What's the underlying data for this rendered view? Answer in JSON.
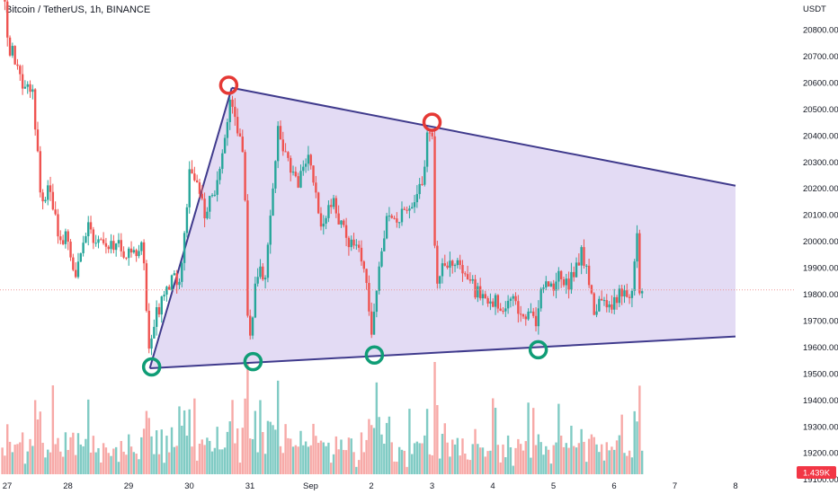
{
  "header": {
    "title": "Bitcoin / TetherUS, 1h, BINANCE"
  },
  "colors": {
    "up": "#26a69a",
    "down": "#ef5350",
    "vol_up": "#80cbc4",
    "vol_down": "#f7a9a7",
    "triangle_fill": "#ded5f2",
    "triangle_line": "#3f3a8c",
    "pivot_high": "#e53935",
    "pivot_low": "#0f9d76",
    "last_price_tag": "#f23645",
    "last_price_line": "#ef9a9a"
  },
  "chart_data": {
    "type": "candlestick",
    "symbol": "Bitcoin / TetherUS",
    "interval": "1h",
    "exchange": "BINANCE",
    "y_axis": {
      "unit": "USDT",
      "range": [
        19100,
        20950
      ],
      "ticks": [
        "20800.00",
        "20700.00",
        "20600.00",
        "20500.00",
        "20400.00",
        "20300.00",
        "20200.00",
        "20100.00",
        "20000.00",
        "19900.00",
        "19800.00",
        "19700.00",
        "19600.00",
        "19500.00",
        "19400.00",
        "19300.00",
        "19200.00",
        "19100.00"
      ]
    },
    "x_axis": {
      "range_days": [
        26.9,
        39.0
      ],
      "ticks": [
        {
          "label": "27",
          "day": 27
        },
        {
          "label": "28",
          "day": 28
        },
        {
          "label": "29",
          "day": 29
        },
        {
          "label": "30",
          "day": 30
        },
        {
          "label": "31",
          "day": 31
        },
        {
          "label": "Sep",
          "day": 32
        },
        {
          "label": "2",
          "day": 33
        },
        {
          "label": "3",
          "day": 34
        },
        {
          "label": "4",
          "day": 35
        },
        {
          "label": "5",
          "day": 36
        },
        {
          "label": "6",
          "day": 37
        },
        {
          "label": "7",
          "day": 38
        },
        {
          "label": "8",
          "day": 39
        }
      ]
    },
    "price_path": [
      [
        27.0,
        20930
      ],
      [
        27.05,
        20750
      ],
      [
        27.15,
        20700
      ],
      [
        27.3,
        20560
      ],
      [
        27.45,
        20600
      ],
      [
        27.6,
        20150
      ],
      [
        27.75,
        20200
      ],
      [
        27.9,
        20000
      ],
      [
        28.0,
        20030
      ],
      [
        28.15,
        19860
      ],
      [
        28.35,
        20050
      ],
      [
        28.6,
        19990
      ],
      [
        28.9,
        19980
      ],
      [
        29.05,
        19950
      ],
      [
        29.25,
        19980
      ],
      [
        29.3,
        19900
      ],
      [
        29.38,
        19560
      ],
      [
        29.5,
        19720
      ],
      [
        29.7,
        19830
      ],
      [
        29.9,
        19880
      ],
      [
        30.05,
        20280
      ],
      [
        30.3,
        20100
      ],
      [
        30.55,
        20260
      ],
      [
        30.7,
        20520
      ],
      [
        30.85,
        20420
      ],
      [
        30.95,
        20320
      ],
      [
        31.0,
        19700
      ],
      [
        31.05,
        19660
      ],
      [
        31.15,
        19880
      ],
      [
        31.3,
        19880
      ],
      [
        31.5,
        20420
      ],
      [
        31.65,
        20310
      ],
      [
        31.85,
        20220
      ],
      [
        32.0,
        20350
      ],
      [
        32.2,
        20050
      ],
      [
        32.4,
        20150
      ],
      [
        32.55,
        20050
      ],
      [
        32.75,
        19960
      ],
      [
        32.9,
        19950
      ],
      [
        33.05,
        19650
      ],
      [
        33.15,
        19840
      ],
      [
        33.3,
        20100
      ],
      [
        33.5,
        20100
      ],
      [
        33.7,
        20150
      ],
      [
        33.9,
        20220
      ],
      [
        33.95,
        20380
      ],
      [
        34.0,
        20430
      ],
      [
        34.05,
        20380
      ],
      [
        34.1,
        19850
      ],
      [
        34.3,
        19930
      ],
      [
        34.55,
        19890
      ],
      [
        34.8,
        19800
      ],
      [
        35.0,
        19780
      ],
      [
        35.2,
        19750
      ],
      [
        35.35,
        19770
      ],
      [
        35.6,
        19730
      ],
      [
        35.75,
        19690
      ],
      [
        35.85,
        19840
      ],
      [
        36.0,
        19820
      ],
      [
        36.15,
        19870
      ],
      [
        36.3,
        19830
      ],
      [
        36.5,
        19960
      ],
      [
        36.6,
        19870
      ],
      [
        36.7,
        19750
      ],
      [
        36.9,
        19760
      ],
      [
        37.1,
        19780
      ],
      [
        37.2,
        19820
      ],
      [
        37.3,
        19760
      ],
      [
        37.42,
        20020
      ],
      [
        37.45,
        19830
      ],
      [
        37.5,
        19810
      ]
    ],
    "last_price": 19816,
    "last_price_day": 37.5,
    "last_volume_label": "1.439K",
    "annotations": {
      "triangle": {
        "upper": [
          [
            30.7,
            20580
          ],
          [
            39.0,
            20210
          ]
        ],
        "lower": [
          [
            29.35,
            19520
          ],
          [
            39.0,
            19640
          ]
        ],
        "left_edge": [
          [
            29.35,
            19520
          ],
          [
            30.7,
            20580
          ]
        ]
      },
      "pivot_highs": [
        [
          30.65,
          20590
        ],
        [
          34.0,
          20450
        ]
      ],
      "pivot_lows": [
        [
          29.38,
          19525
        ],
        [
          31.05,
          19545
        ],
        [
          33.05,
          19570
        ],
        [
          35.75,
          19590
        ]
      ]
    }
  }
}
